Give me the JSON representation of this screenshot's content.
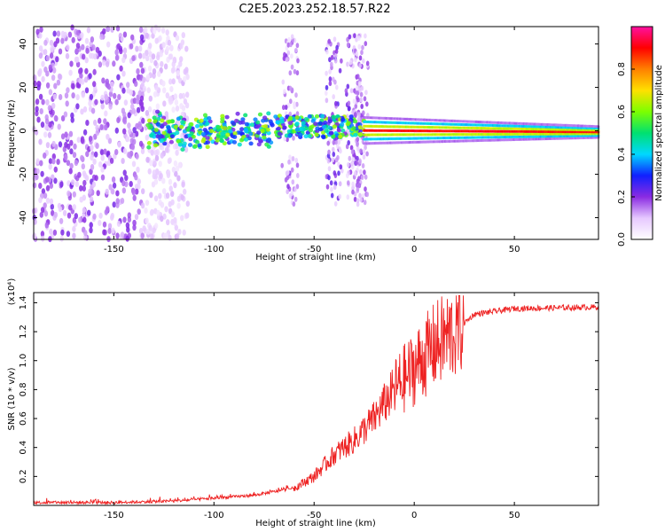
{
  "title": "C2E5.2023.252.18.57.R22",
  "chart_data": [
    {
      "type": "heatmap",
      "xlabel": "Height of straight line (km)",
      "ylabel": "Frequency (Hz)",
      "xlim": [
        -190,
        92
      ],
      "ylim": [
        -50,
        48
      ],
      "xticks": [
        -150,
        -100,
        -50,
        0,
        50
      ],
      "yticks": [
        -40,
        -20,
        0,
        20,
        40
      ],
      "colorbar": {
        "label": "Normalized spectral amplitude",
        "range": [
          0,
          1
        ],
        "ticks": [
          0.0,
          0.2,
          0.4,
          0.6,
          0.8
        ],
        "colormap": [
          "#ffffff",
          "#e6c8ff",
          "#8a2be2",
          "#1020ff",
          "#00d8ff",
          "#00e070",
          "#7cff00",
          "#ffe000",
          "#ff8000",
          "#ff0000",
          "#ff10a0"
        ]
      },
      "features": {
        "noise_region": {
          "x": [
            -190,
            -113
          ],
          "amplitude": 0.15
        },
        "scatter_band": {
          "x": [
            -133,
            -25
          ],
          "center_hz": 0,
          "amplitude": 0.45
        },
        "strong_band": {
          "x": [
            -25,
            92
          ],
          "center_hz": 0,
          "amplitude": 0.9
        }
      }
    },
    {
      "type": "line",
      "xlabel": "Height of straight line (km)",
      "ylabel": "SNR (10 * v/v)",
      "scale_label": "(x10⁴)",
      "xlim": [
        -190,
        92
      ],
      "ylim": [
        0,
        1.47
      ],
      "xticks": [
        -150,
        -100,
        -50,
        0,
        50
      ],
      "yticks": [
        0.2,
        0.4,
        0.6,
        0.8,
        1.0,
        1.2,
        1.4
      ],
      "series": [
        {
          "color": "#ee2222",
          "envelope_x": [
            -190,
            -150,
            -120,
            -100,
            -80,
            -60,
            -50,
            -40,
            -30,
            -20,
            -10,
            0,
            10,
            20,
            30,
            50,
            92
          ],
          "envelope_y": [
            0.02,
            0.02,
            0.03,
            0.05,
            0.07,
            0.12,
            0.2,
            0.35,
            0.45,
            0.6,
            0.8,
            0.95,
            1.1,
            1.2,
            1.32,
            1.36,
            1.37
          ]
        }
      ]
    }
  ]
}
